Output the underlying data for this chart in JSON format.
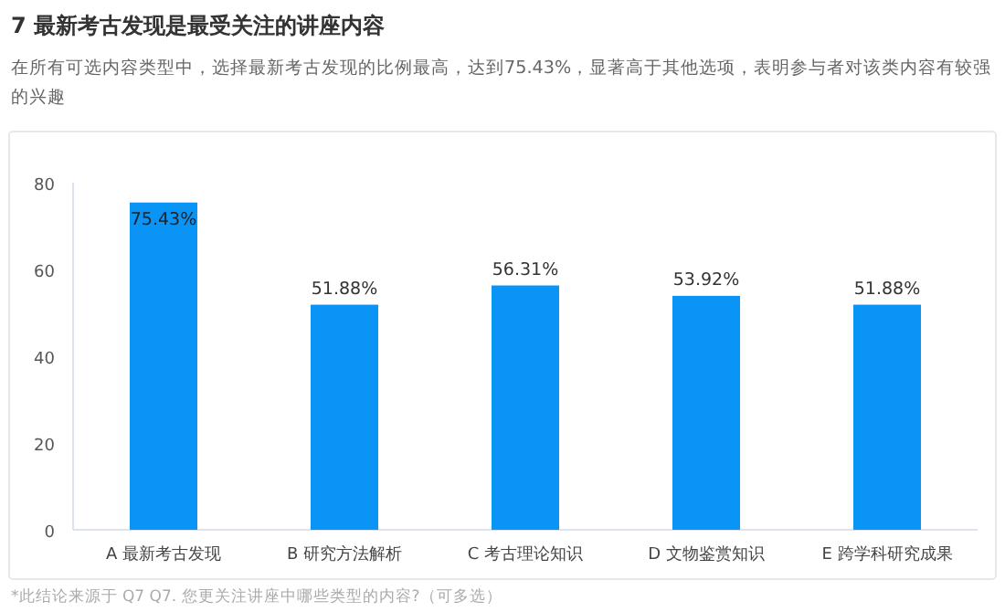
{
  "chart_data": {
    "type": "bar",
    "title": "7 最新考古发现是最受关注的讲座内容",
    "subtitle": "在所有可选内容类型中，选择最新考古发现的比例最高，达到75.43%，显著高于其他选项，表明参与者对该类内容有较强的兴趣",
    "categories": [
      "A 最新考古发现",
      "B 研究方法解析",
      "C 考古理论知识",
      "D 文物鉴赏知识",
      "E 跨学科研究成果"
    ],
    "values": [
      75.43,
      51.88,
      56.31,
      53.92,
      51.88
    ],
    "value_labels": [
      "75.43%",
      "51.88%",
      "56.31%",
      "53.92%",
      "51.88%"
    ],
    "color": "#0a94f5",
    "ylim": [
      0,
      80
    ],
    "yticks": [
      0,
      20,
      40,
      60,
      80
    ],
    "grid": false,
    "annotations": [
      "*此结论来源于 Q7 Q7. 您更关注讲座中哪些类型的内容?（可多选）"
    ]
  }
}
